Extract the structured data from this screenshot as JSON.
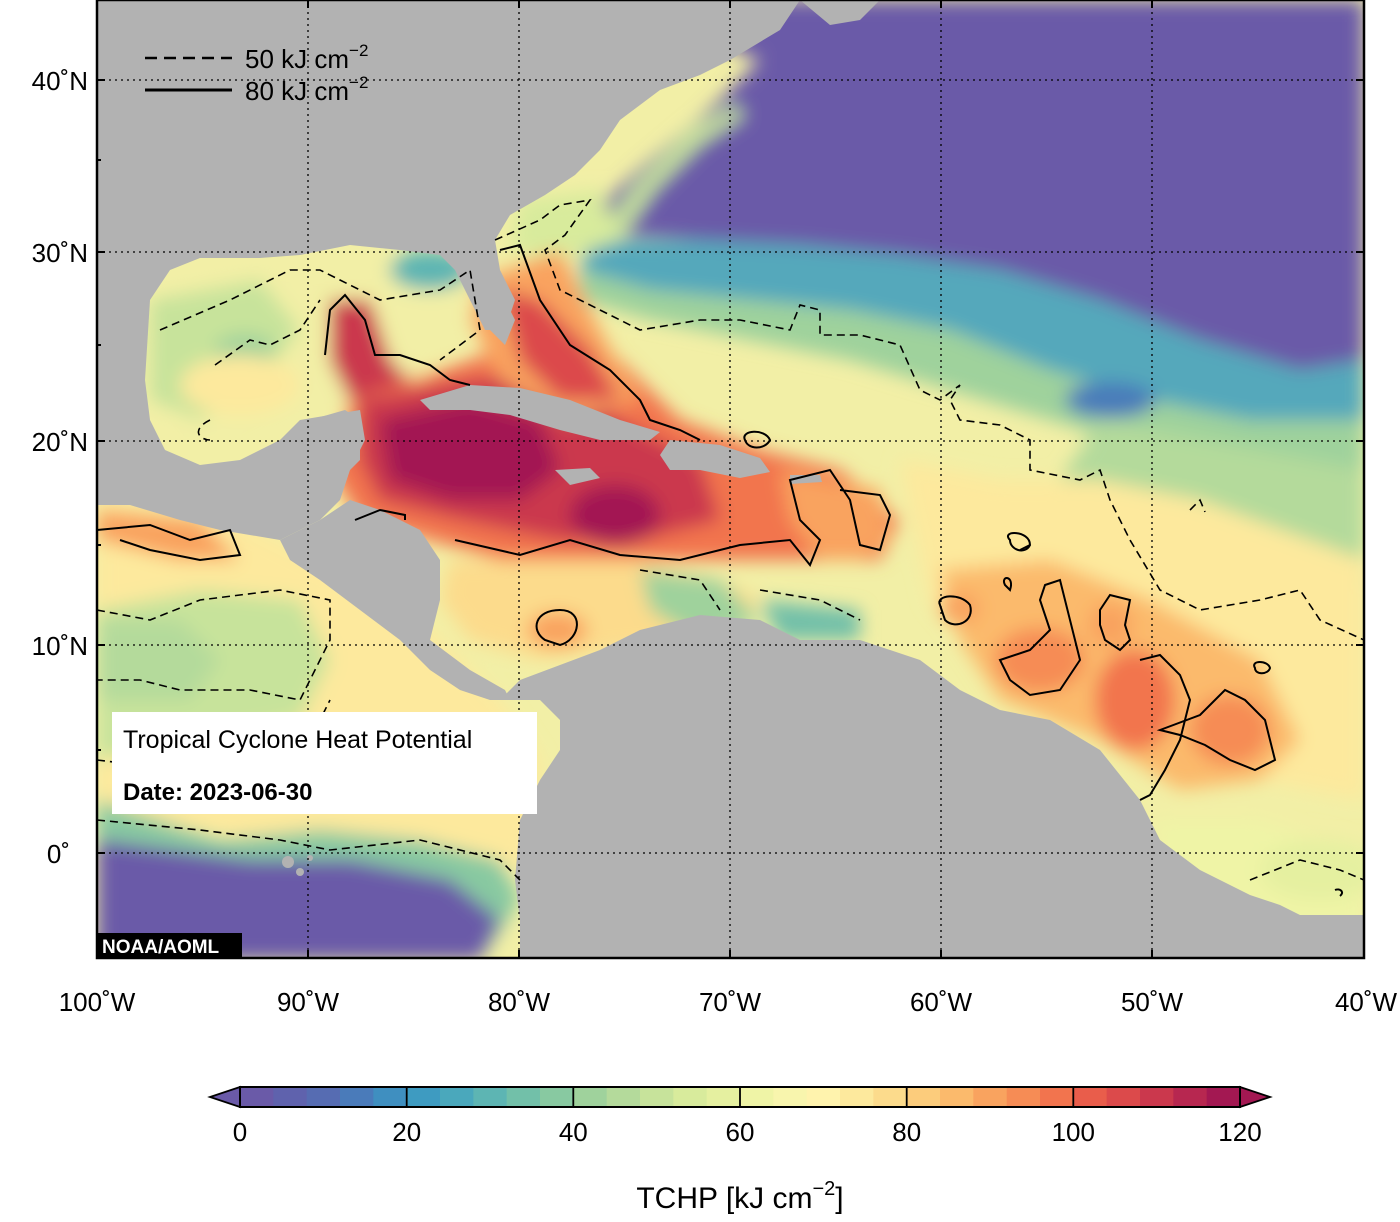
{
  "map": {
    "lat_labels": [
      "40˚N",
      "30˚N",
      "20˚N",
      "10˚N",
      "0˚"
    ],
    "lon_labels": [
      "100˚W",
      "90˚W",
      "80˚W",
      "70˚W",
      "60˚W",
      "50˚W",
      "40˚W"
    ],
    "legend": {
      "dashed_label": "50 kJ cm",
      "solid_label": "80 kJ cm",
      "exponent": "−2"
    },
    "info_box": {
      "title": "Tropical Cyclone Heat Potential",
      "date_label": "Date: 2023-06-30"
    },
    "credit": "NOAA/AOML"
  },
  "colorbar": {
    "tick_labels": [
      "0",
      "20",
      "40",
      "60",
      "80",
      "100",
      "120"
    ],
    "title": "TCHP [kJ cm",
    "title_exponent": "−2",
    "title_close": "]",
    "colors": [
      "#6a5aa8",
      "#5f62ad",
      "#566cb2",
      "#4a7bba",
      "#3f8fc0",
      "#3e9bc1",
      "#4aa8bc",
      "#5db5b3",
      "#72c0a9",
      "#88c9a1",
      "#9fd29c",
      "#b4da9b",
      "#c7e39b",
      "#d8eb9c",
      "#e5f0a0",
      "#eff4a6",
      "#f8f5ad",
      "#fff3ad",
      "#fde99d",
      "#fcdb8c",
      "#fccc7c",
      "#fbba6c",
      "#f9a35f",
      "#f68c55",
      "#f2744e",
      "#e95d4b",
      "#dc4a4b",
      "#cb384d",
      "#b72750",
      "#a31852"
    ]
  }
}
